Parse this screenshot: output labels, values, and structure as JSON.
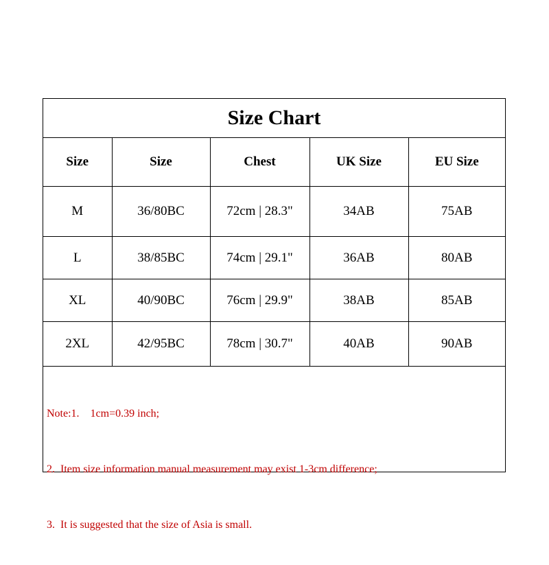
{
  "title": "Size Chart",
  "headers": [
    "Size",
    "Size",
    "Chest",
    "UK Size",
    "EU Size"
  ],
  "rows": [
    [
      "M",
      "36/80BC",
      "72cm | 28.3\"",
      "34AB",
      "75AB"
    ],
    [
      "L",
      "38/85BC",
      "74cm | 29.1\"",
      "36AB",
      "80AB"
    ],
    [
      "XL",
      "40/90BC",
      "76cm | 29.9\"",
      "38AB",
      "85AB"
    ],
    [
      "2XL",
      "42/95BC",
      "78cm | 30.7\"",
      "40AB",
      "90AB"
    ]
  ],
  "notes": [
    "Note:1.    1cm=0.39 inch;",
    "2.  Item size information manual measurement may exist 1-3cm difference;",
    "3.  It is suggested that the size of Asia is small."
  ],
  "colors": {
    "note_text": "#c00000",
    "border": "#000000"
  }
}
